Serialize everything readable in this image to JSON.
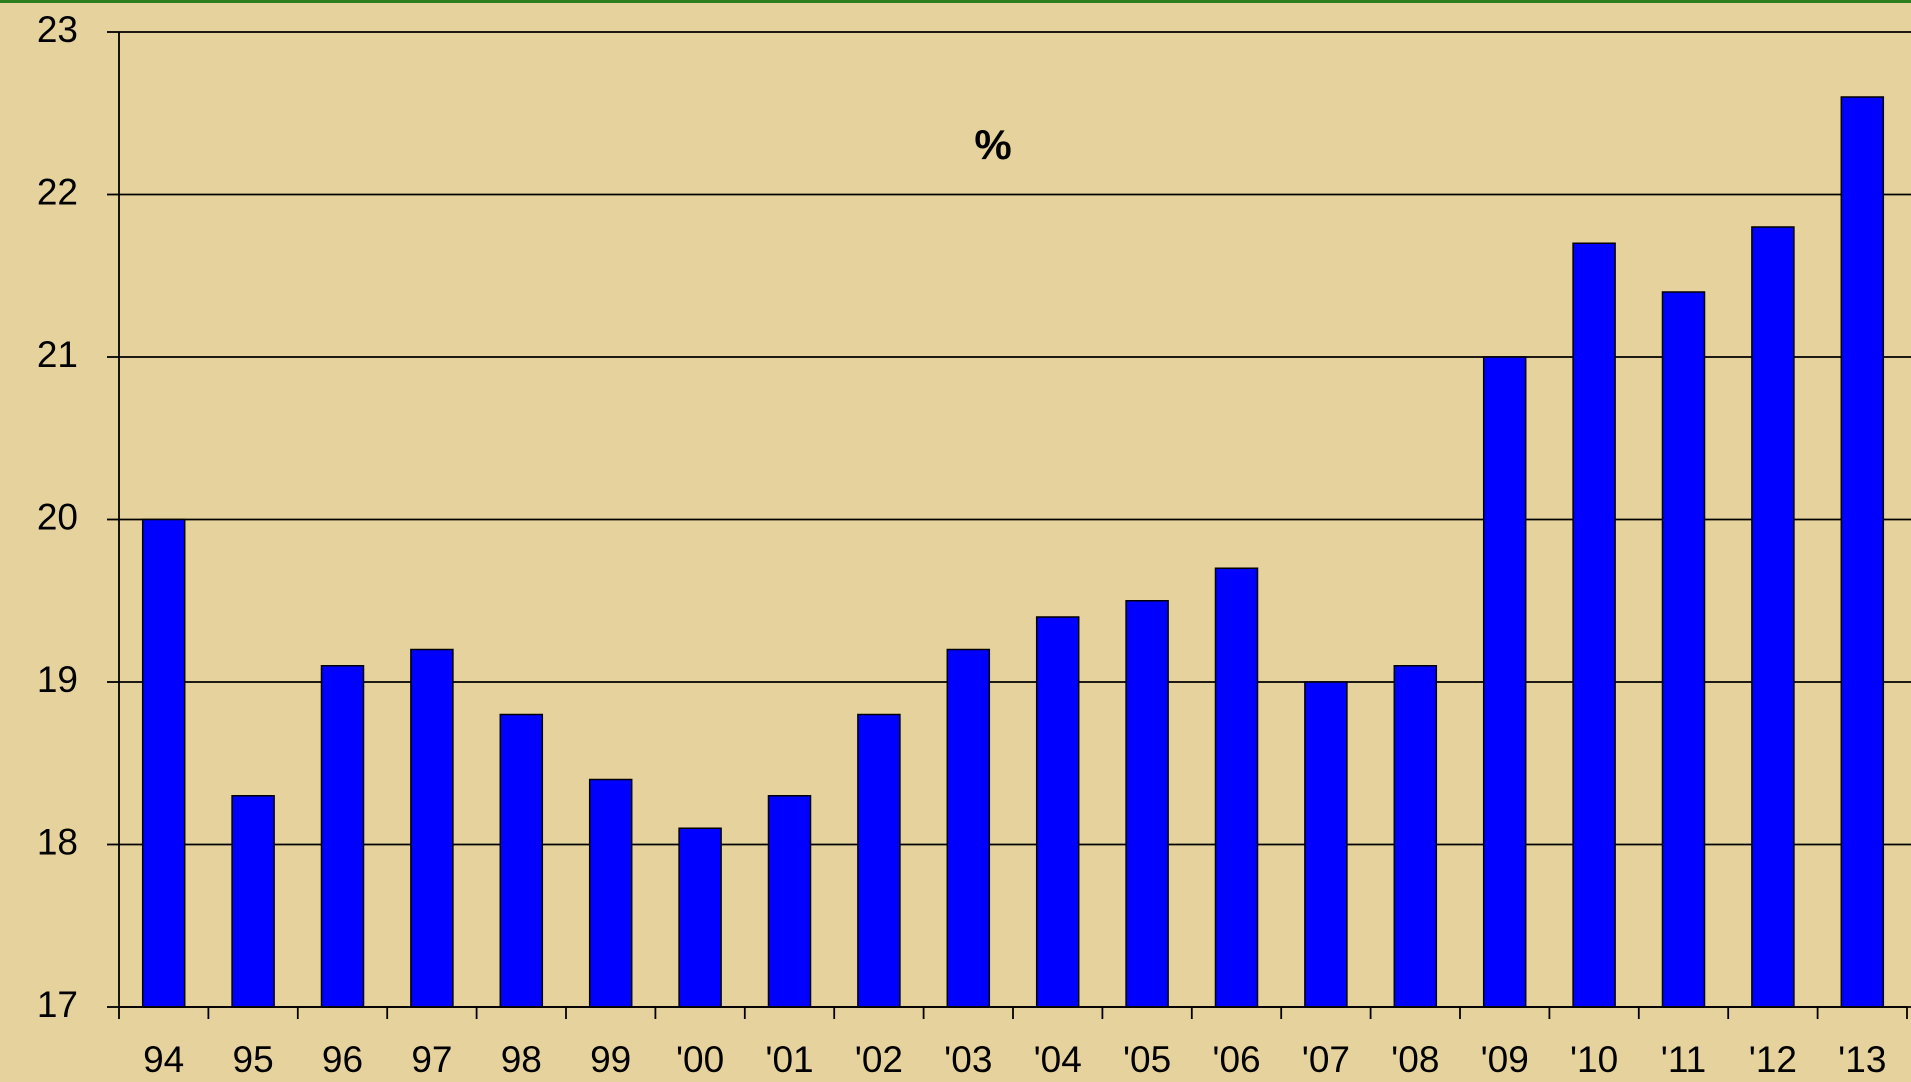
{
  "chart_data": {
    "type": "bar",
    "title": "%",
    "categories": [
      "94",
      "95",
      "96",
      "97",
      "98",
      "99",
      "'00",
      "'01",
      "'02",
      "'03",
      "'04",
      "'05",
      "'06",
      "'07",
      "'08",
      "'09",
      "'10",
      "'11",
      "'12",
      "'13"
    ],
    "values": [
      20.0,
      18.3,
      19.1,
      19.2,
      18.8,
      18.4,
      18.1,
      18.3,
      18.8,
      19.2,
      19.4,
      19.5,
      19.7,
      19.0,
      19.1,
      21.0,
      21.7,
      21.4,
      21.8,
      22.6
    ],
    "color": "#0000ff",
    "ylim": [
      17,
      23
    ],
    "yticks": [
      17,
      18,
      19,
      20,
      21,
      22,
      23
    ],
    "grid": true
  }
}
